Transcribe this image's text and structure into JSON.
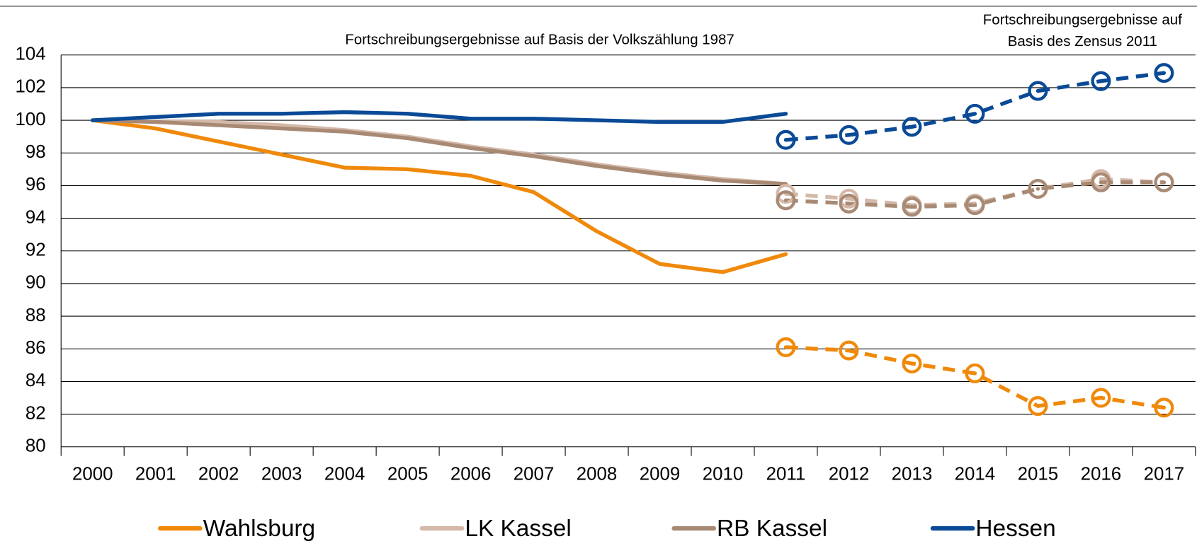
{
  "chart_data": {
    "type": "line",
    "annotations": [
      "Fortschreibungsergebnisse auf Basis der Volkszählung 1987",
      "Fortschreibungsergebnisse auf",
      "Basis des Zensus 2011"
    ],
    "categories": [
      "2000",
      "2001",
      "2002",
      "2003",
      "2004",
      "2005",
      "2006",
      "2007",
      "2008",
      "2009",
      "2010",
      "2011",
      "2012",
      "2013",
      "2014",
      "2015",
      "2016",
      "2017"
    ],
    "ylim": [
      80,
      104
    ],
    "yticks": [
      80,
      82,
      84,
      86,
      88,
      90,
      92,
      94,
      96,
      98,
      100,
      102,
      104
    ],
    "grid": true,
    "series": [
      {
        "name": "Wahlsburg",
        "color": "#f0890a",
        "values": [
          100,
          99.5,
          98.7,
          97.9,
          97.1,
          97.0,
          96.6,
          95.6,
          93.2,
          91.2,
          90.7,
          91.8,
          null,
          null,
          null,
          null,
          null,
          null
        ],
        "zensus_values": [
          null,
          null,
          null,
          null,
          null,
          null,
          null,
          null,
          null,
          null,
          null,
          86.1,
          85.9,
          85.1,
          84.5,
          82.5,
          83.0,
          82.4
        ]
      },
      {
        "name": "LK Kassel",
        "color": "#d4b8a8",
        "values": [
          100,
          99.9,
          99.9,
          99.7,
          99.4,
          99.0,
          98.4,
          97.9,
          97.3,
          96.8,
          96.4,
          96.1,
          null,
          null,
          null,
          null,
          null,
          null
        ],
        "zensus_values": [
          null,
          null,
          null,
          null,
          null,
          null,
          null,
          null,
          null,
          null,
          null,
          95.5,
          95.2,
          94.8,
          94.9,
          95.8,
          96.4,
          96.2
        ]
      },
      {
        "name": "RB Kassel",
        "color": "#a88a74",
        "values": [
          100,
          99.9,
          99.7,
          99.5,
          99.3,
          98.9,
          98.3,
          97.8,
          97.2,
          96.7,
          96.3,
          96.1,
          null,
          null,
          null,
          null,
          null,
          null
        ],
        "zensus_values": [
          null,
          null,
          null,
          null,
          null,
          null,
          null,
          null,
          null,
          null,
          null,
          95.1,
          94.9,
          94.7,
          94.8,
          95.8,
          96.2,
          96.2
        ]
      },
      {
        "name": "Hessen",
        "color": "#0a4a96",
        "values": [
          100,
          100.2,
          100.4,
          100.4,
          100.5,
          100.4,
          100.1,
          100.1,
          100.0,
          99.9,
          99.9,
          100.4,
          null,
          null,
          null,
          null,
          null,
          null
        ],
        "zensus_values": [
          null,
          null,
          null,
          null,
          null,
          null,
          null,
          null,
          null,
          null,
          null,
          98.8,
          99.1,
          99.6,
          100.4,
          101.8,
          102.4,
          102.9
        ]
      }
    ]
  }
}
